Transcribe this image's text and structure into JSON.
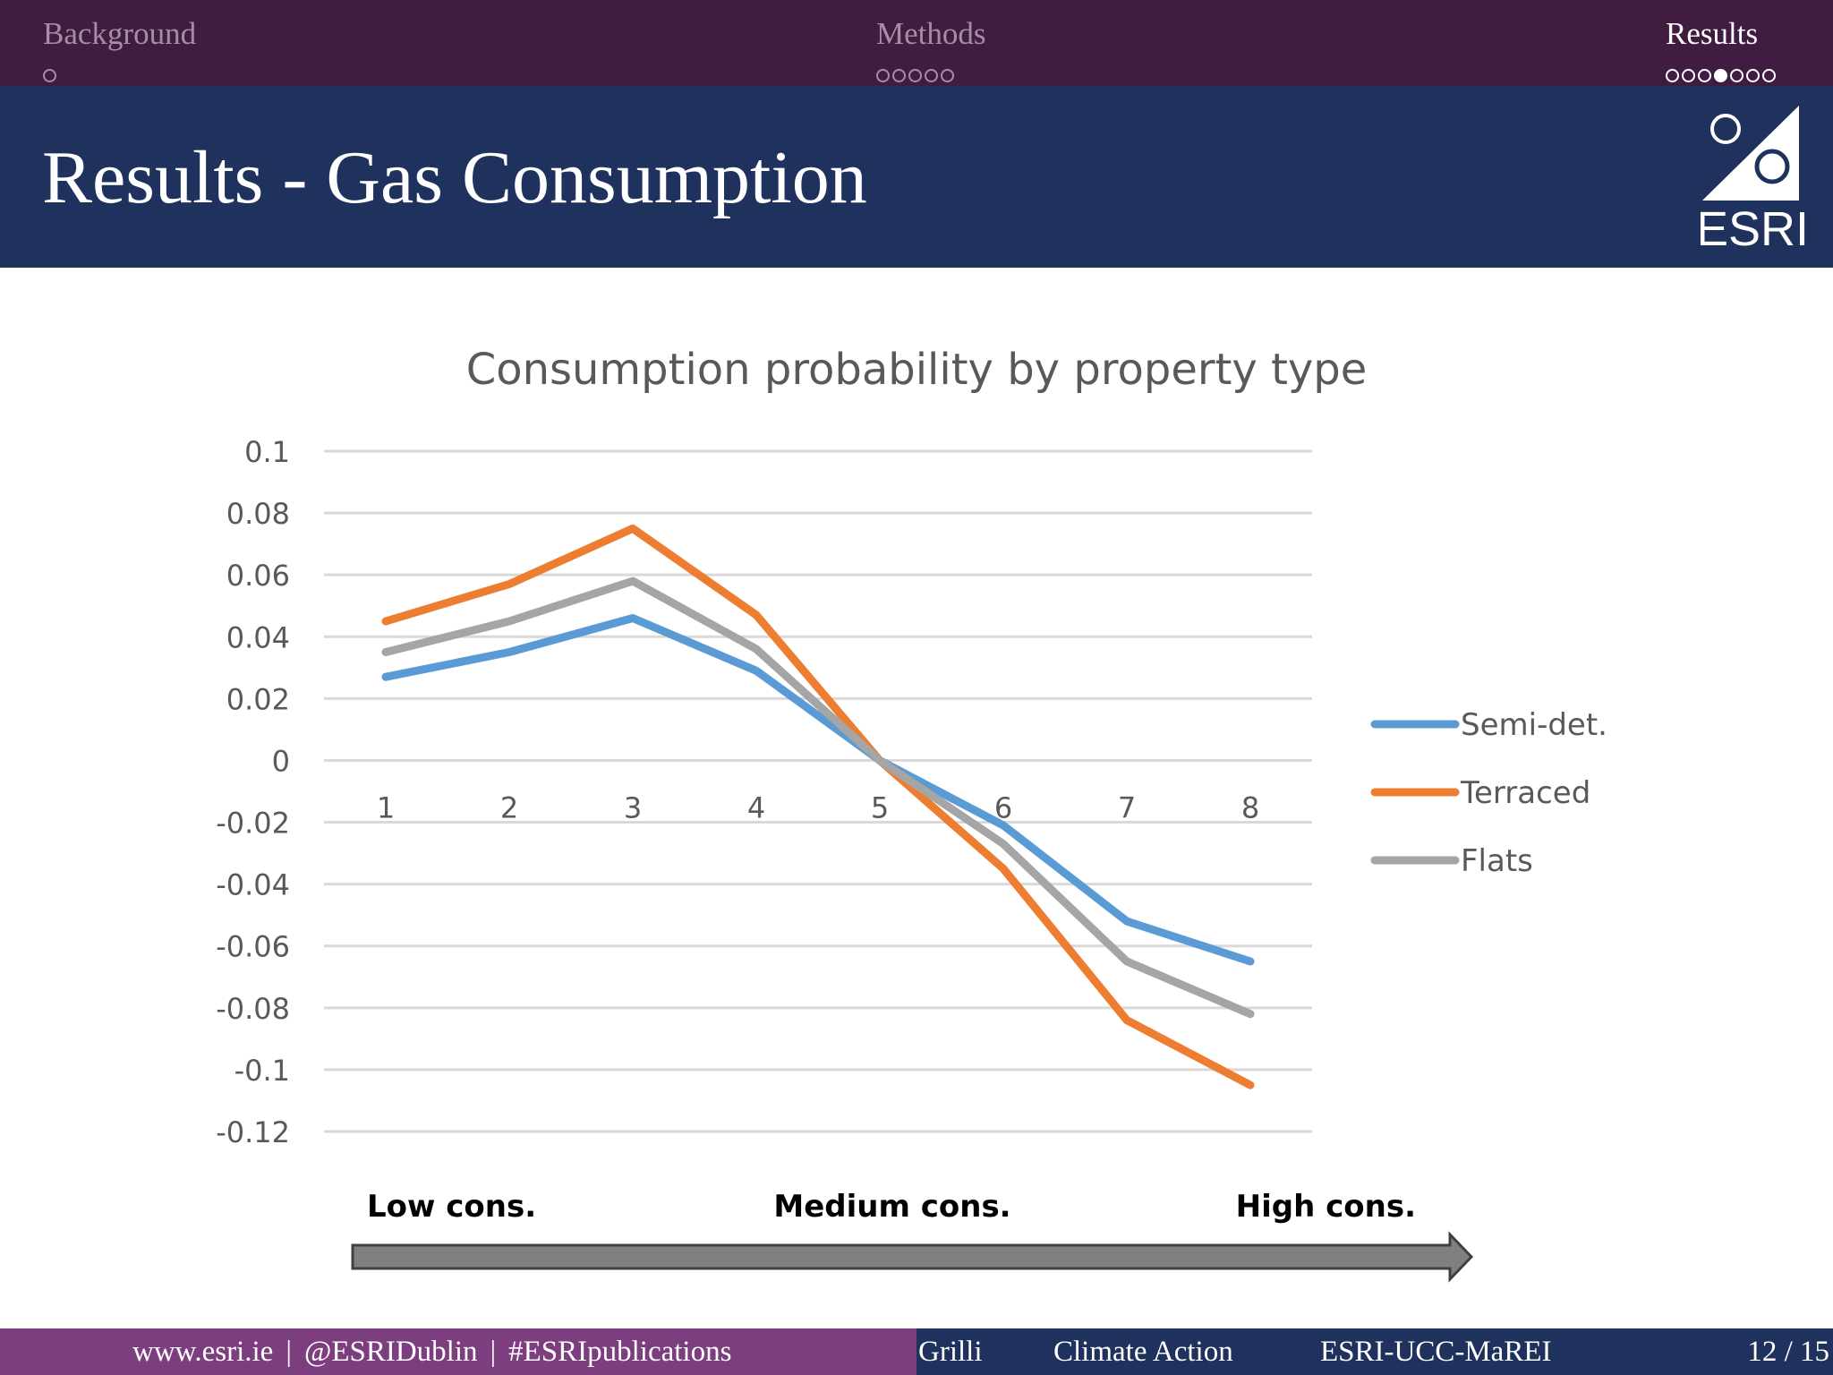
{
  "nav": {
    "sections": [
      {
        "label": "Background",
        "dots": 1,
        "filled": -1,
        "active": false
      },
      {
        "label": "Methods",
        "dots": 5,
        "filled": -1,
        "active": false
      },
      {
        "label": "Results",
        "dots": 7,
        "filled": 3,
        "active": true
      }
    ]
  },
  "title": "Results - Gas Consumption",
  "logo_text": "ESRI",
  "chart_data": {
    "type": "line",
    "title": "Consumption probability by property type",
    "x": [
      1,
      2,
      3,
      4,
      5,
      6,
      7,
      8
    ],
    "ylim": [
      -0.12,
      0.1
    ],
    "yticks": [
      "0.1",
      "0.08",
      "0.06",
      "0.04",
      "0.02",
      "0",
      "-0.02",
      "-0.04",
      "-0.06",
      "-0.08",
      "-0.1",
      "-0.12"
    ],
    "grid": true,
    "legend_position": "right",
    "series": [
      {
        "name": "Semi-det.",
        "color": "#5b9bd5",
        "values": [
          0.027,
          0.035,
          0.046,
          0.029,
          0.0,
          -0.021,
          -0.052,
          -0.065
        ]
      },
      {
        "name": "Terraced",
        "color": "#ed7d31",
        "values": [
          0.045,
          0.057,
          0.075,
          0.047,
          0.0,
          -0.035,
          -0.084,
          -0.105
        ]
      },
      {
        "name": "Flats",
        "color": "#a5a5a5",
        "values": [
          0.035,
          0.045,
          0.058,
          0.036,
          0.0,
          -0.027,
          -0.065,
          -0.082
        ]
      }
    ],
    "annotation": {
      "low": "Low cons.",
      "medium": "Medium cons.",
      "high": "High cons."
    }
  },
  "footer": {
    "website": "www.esri.ie",
    "twitter": "@ESRIDublin",
    "hashtag": "#ESRIpublications",
    "separator": "|",
    "author": "Grilli",
    "short_title": "Climate Action",
    "institute": "ESRI-UCC-MaREI",
    "page": "12 / 15"
  },
  "colors": {
    "nav_bg": "#401d40",
    "title_bg": "#1f325d",
    "footer_left": "#7c3e7e",
    "footer_right": "#1f325d"
  }
}
